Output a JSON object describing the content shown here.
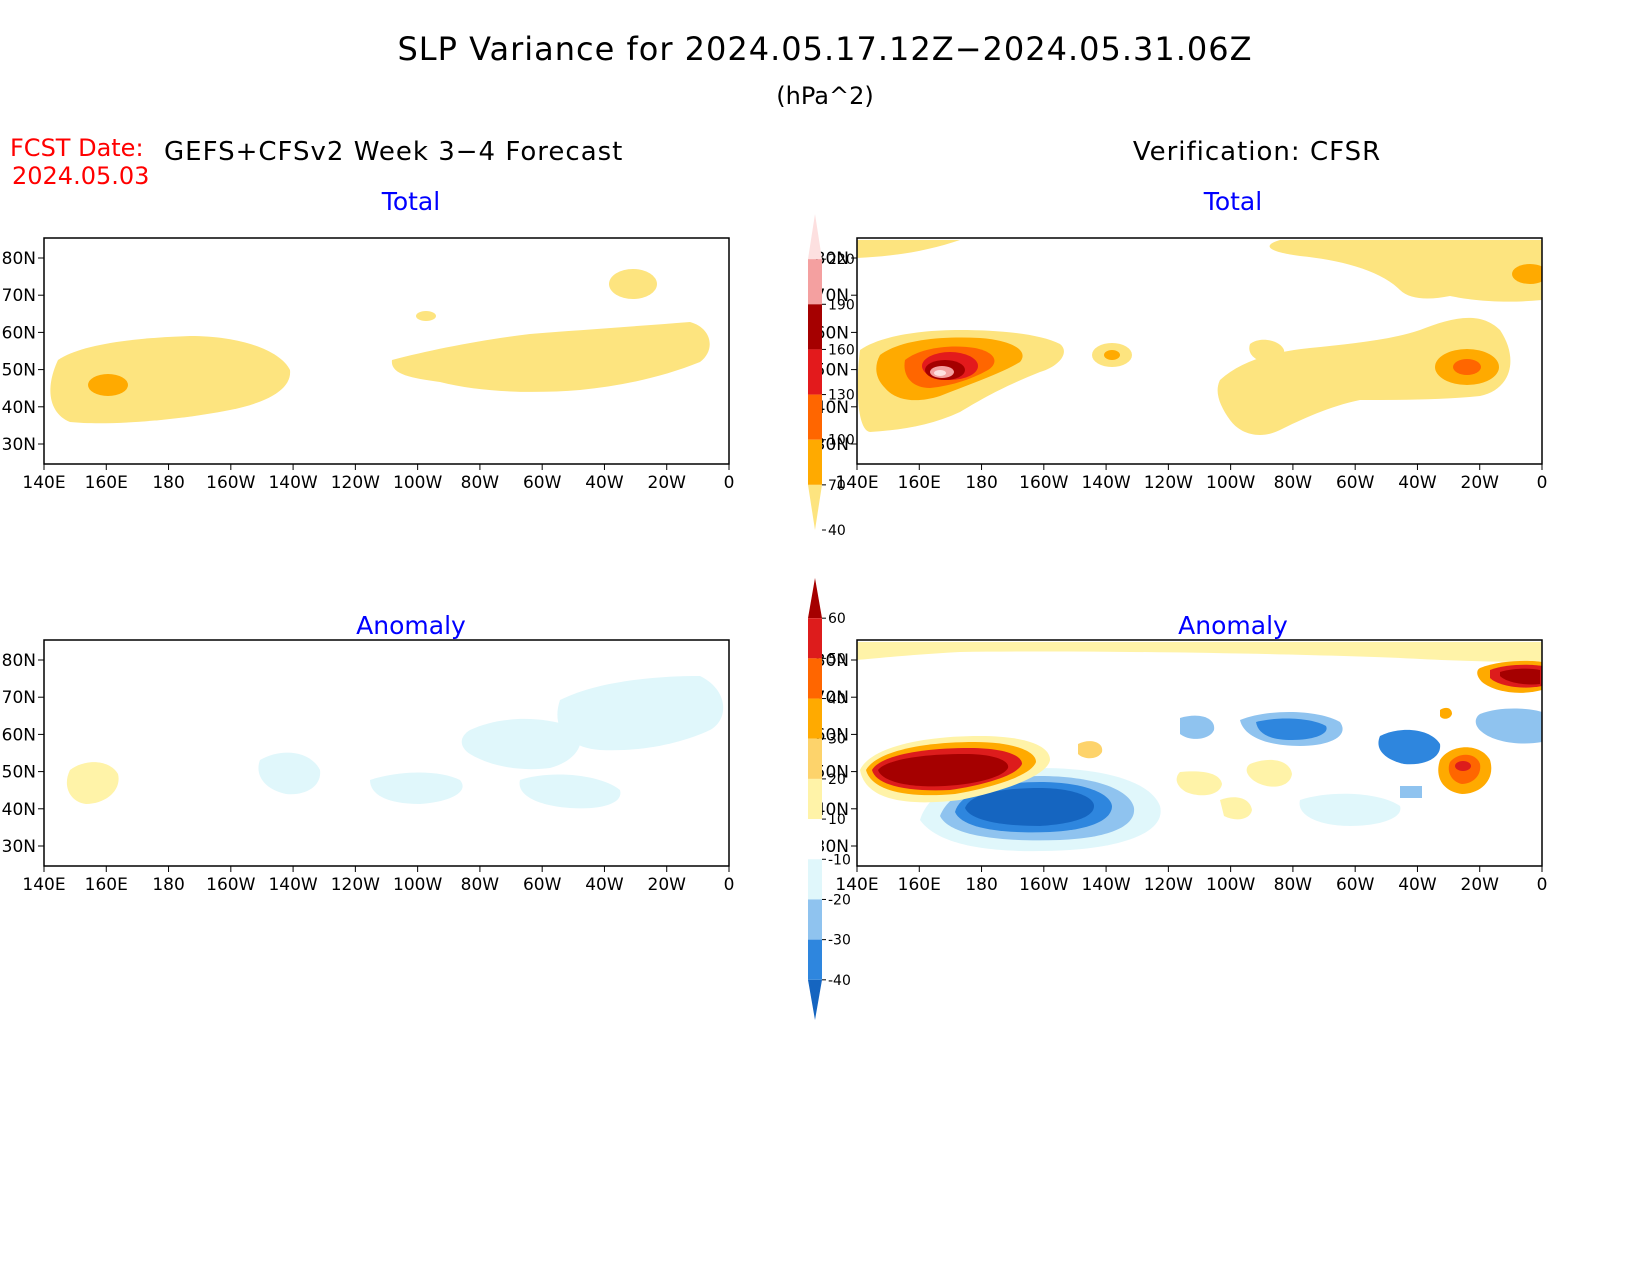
{
  "title": "SLP Variance for 2024.05.17.12Z−2024.05.31.06Z",
  "units": "(hPa^2)",
  "fcst_date_label": "FCST Date:",
  "fcst_date_value": "2024.05.03",
  "forecast_heading": "GEFS+CFSv2 Week 3−4 Forecast",
  "verification_heading": "Verification: CFSR",
  "panel_titles": {
    "total": "Total",
    "anomaly": "Anomaly"
  },
  "lon_ticks": [
    "140E",
    "160E",
    "180",
    "160W",
    "140W",
    "120W",
    "100W",
    "80W",
    "60W",
    "40W",
    "20W",
    "0"
  ],
  "lat_ticks": [
    "30N",
    "40N",
    "50N",
    "60N",
    "70N",
    "80N"
  ],
  "colorbar_total": {
    "levels": [
      "40",
      "70",
      "100",
      "130",
      "160",
      "190",
      "220"
    ],
    "colors": [
      "#fde47f",
      "#ffaa00",
      "#ff6600",
      "#e31a1c",
      "#a50000",
      "#f4a0a0",
      "#fde0e0"
    ]
  },
  "colorbar_anomaly": {
    "levels": [
      "-40",
      "-30",
      "-20",
      "-10",
      "10",
      "20",
      "30",
      "40",
      "50",
      "60"
    ],
    "colors": [
      "#1565c0",
      "#2e86de",
      "#8fc3ef",
      "#e0f7fb",
      "#ffffff",
      "#fff3a8",
      "#fdd36b",
      "#ffaa00",
      "#ff6600",
      "#dd1c1c",
      "#a50000"
    ]
  },
  "colors": {
    "title_text": "#000000",
    "fcst_date": "#ff0000",
    "panel_title": "#0000ff",
    "coast": "#000000"
  }
}
